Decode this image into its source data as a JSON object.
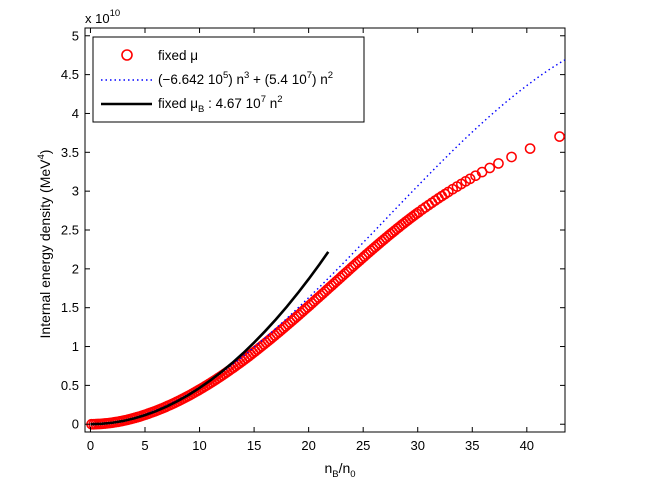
{
  "chart_data": {
    "type": "scatter",
    "xlabel": {
      "base": "n",
      "sub1": "B",
      "mid": "/n",
      "sub2": "0"
    },
    "ylabel": {
      "text": "Internal energy density (MeV",
      "sup": "4",
      "end": ")"
    },
    "y_multiplier": {
      "prefix": "x 10",
      "exponent": "10"
    },
    "x_ticks": [
      0,
      5,
      10,
      15,
      20,
      25,
      30,
      35,
      40
    ],
    "y_ticks": [
      0,
      0.5,
      1,
      1.5,
      2,
      2.5,
      3,
      3.5,
      4,
      4.5,
      5
    ],
    "y_tick_labels": [
      "0",
      "0.5",
      "1",
      "1.5",
      "2",
      "2.5",
      "3",
      "3.5",
      "4",
      "4.5",
      "5"
    ],
    "xlim": [
      -0.5,
      43.5
    ],
    "ylim": [
      -0.1,
      5.1
    ],
    "y_scale_note": "y values in units of 10^10 MeV^4",
    "grid": false,
    "legend_position": "top-left",
    "legend": [
      {
        "id": "fixed_mu",
        "text": "fixed μ",
        "style": "red-circle"
      },
      {
        "id": "fit",
        "p1": "(−6.642 10",
        "s1": "5",
        "p2": ") n",
        "s2": "3",
        "p3": " + (5.4 10",
        "s3": "7",
        "p4": ") n",
        "s4": "2",
        "style": "blue-dotted"
      },
      {
        "id": "fixed_muB",
        "p1": "fixed μ",
        "sub": "B",
        "p2": " : 4.67 10",
        "s1": "7",
        "p3": " n",
        "s2": "2",
        "style": "black-solid"
      }
    ],
    "series": [
      {
        "name": "fixed μ",
        "marker": "circle",
        "color": "#ff0000",
        "x": [
          0.1,
          0.3,
          0.5,
          0.7,
          0.9,
          1.1,
          1.3,
          1.5,
          1.7,
          1.9,
          2.1,
          2.3,
          2.5,
          2.7,
          2.9,
          3.1,
          3.3,
          3.5,
          3.7,
          3.9,
          4.1,
          4.3,
          4.5,
          4.7,
          4.9,
          5.1,
          5.3,
          5.5,
          5.7,
          5.9,
          6.1,
          6.3,
          6.5,
          6.7,
          6.9,
          7.1,
          7.3,
          7.5,
          7.7,
          7.9,
          8.1,
          8.3,
          8.5,
          8.7,
          8.9,
          9.1,
          9.3,
          9.5,
          9.7,
          9.9,
          10.1,
          10.3,
          10.5,
          10.7,
          10.9,
          11.1,
          11.3,
          11.5,
          11.7,
          11.9,
          12.1,
          12.3,
          12.5,
          12.7,
          12.9,
          13.1,
          13.3,
          13.5,
          13.7,
          13.9,
          14.1,
          14.3,
          14.5,
          14.7,
          14.9,
          15.1,
          15.3,
          15.5,
          15.7,
          15.9,
          16.1,
          16.3,
          16.5,
          16.7,
          16.9,
          17.1,
          17.3,
          17.5,
          17.7,
          17.9,
          18.1,
          18.3,
          18.5,
          18.7,
          18.9,
          19.1,
          19.3,
          19.5,
          19.7,
          19.9,
          20.1,
          20.3,
          20.5,
          20.7,
          20.9,
          21.1,
          21.3,
          21.5,
          21.7,
          21.9,
          22.1,
          22.3,
          22.5,
          22.7,
          22.9,
          23.1,
          23.3,
          23.5,
          23.7,
          23.9,
          24.1,
          24.3,
          24.5,
          24.7,
          24.9,
          25.1,
          25.3,
          25.5,
          25.7,
          25.9,
          26.1,
          26.3,
          26.5,
          26.7,
          26.9,
          27.1,
          27.3,
          27.5,
          27.7,
          27.9,
          28.1,
          28.3,
          28.5,
          28.7,
          28.9,
          29.1,
          29.3,
          29.5,
          29.7,
          29.9,
          30.1,
          30.4,
          30.7,
          31.0,
          31.3,
          31.6,
          31.9,
          32.2,
          32.5,
          32.8,
          33.2,
          33.6,
          34.0,
          34.4,
          34.8,
          35.3,
          35.9,
          36.6,
          37.4,
          38.6,
          40.3,
          43.0
        ],
        "y": [
          0.0,
          0.0,
          0.001,
          0.003,
          0.004,
          0.006,
          0.009,
          0.012,
          0.015,
          0.018,
          0.022,
          0.027,
          0.031,
          0.037,
          0.042,
          0.048,
          0.054,
          0.061,
          0.068,
          0.075,
          0.083,
          0.091,
          0.099,
          0.108,
          0.117,
          0.126,
          0.136,
          0.146,
          0.156,
          0.166,
          0.177,
          0.188,
          0.2,
          0.211,
          0.223,
          0.236,
          0.248,
          0.261,
          0.274,
          0.288,
          0.301,
          0.315,
          0.33,
          0.344,
          0.359,
          0.374,
          0.389,
          0.405,
          0.421,
          0.437,
          0.454,
          0.47,
          0.487,
          0.504,
          0.522,
          0.539,
          0.557,
          0.575,
          0.594,
          0.612,
          0.631,
          0.65,
          0.669,
          0.689,
          0.709,
          0.728,
          0.749,
          0.769,
          0.789,
          0.81,
          0.831,
          0.852,
          0.873,
          0.895,
          0.917,
          0.939,
          0.961,
          0.983,
          1.005,
          1.028,
          1.05,
          1.073,
          1.096,
          1.12,
          1.143,
          1.166,
          1.19,
          1.214,
          1.237,
          1.261,
          1.285,
          1.31,
          1.334,
          1.358,
          1.383,
          1.407,
          1.432,
          1.457,
          1.482,
          1.506,
          1.531,
          1.556,
          1.581,
          1.607,
          1.632,
          1.657,
          1.682,
          1.707,
          1.733,
          1.758,
          1.783,
          1.809,
          1.834,
          1.859,
          1.884,
          1.91,
          1.935,
          1.96,
          1.985,
          2.011,
          2.036,
          2.061,
          2.086,
          2.11,
          2.135,
          2.16,
          2.185,
          2.209,
          2.234,
          2.258,
          2.282,
          2.306,
          2.33,
          2.354,
          2.377,
          2.401,
          2.424,
          2.448,
          2.47,
          2.493,
          2.516,
          2.538,
          2.561,
          2.583,
          2.605,
          2.626,
          2.648,
          2.669,
          2.69,
          2.711,
          2.731,
          2.762,
          2.791,
          2.821,
          2.85,
          2.879,
          2.907,
          2.935,
          2.962,
          2.989,
          3.025,
          3.059,
          3.093,
          3.127,
          3.159,
          3.199,
          3.246,
          3.299,
          3.357,
          3.44,
          3.548,
          3.703
        ]
      },
      {
        "name": "(−6.642 10^5) n^3 + (5.4 10^7) n^2",
        "style": "dotted",
        "color": "#0000ff",
        "x": [
          0,
          1,
          2,
          3,
          4,
          5,
          6,
          7,
          8,
          9,
          10,
          11,
          12,
          13,
          14,
          15,
          16,
          17,
          18,
          19,
          20,
          21,
          22,
          23,
          24,
          25,
          26,
          27,
          28,
          29,
          30,
          31,
          32,
          33,
          34,
          35,
          36,
          37,
          38,
          39,
          40,
          41,
          42,
          43,
          43.5
        ],
        "y": [
          0.0,
          0.005,
          0.021,
          0.047,
          0.082,
          0.127,
          0.18,
          0.242,
          0.312,
          0.389,
          0.474,
          0.565,
          0.663,
          0.767,
          0.876,
          0.991,
          1.11,
          1.234,
          1.362,
          1.494,
          1.629,
          1.766,
          1.906,
          2.048,
          2.192,
          2.338,
          2.483,
          2.63,
          2.777,
          2.923,
          3.067,
          3.211,
          3.353,
          3.492,
          3.629,
          3.762,
          3.89,
          4.015,
          4.136,
          4.25,
          4.359,
          4.463,
          4.56,
          4.649,
          4.69
        ]
      },
      {
        "name": "fixed μB : 4.67 10^7 n^2",
        "style": "solid",
        "color": "#000000",
        "x": [
          0,
          1,
          2,
          3,
          4,
          5,
          6,
          7,
          8,
          9,
          10,
          11,
          12,
          13,
          14,
          15,
          16,
          17,
          18,
          19,
          20,
          21,
          21.8
        ],
        "y": [
          0.0,
          0.005,
          0.019,
          0.042,
          0.075,
          0.117,
          0.168,
          0.229,
          0.299,
          0.378,
          0.467,
          0.565,
          0.672,
          0.789,
          0.915,
          1.051,
          1.196,
          1.35,
          1.513,
          1.686,
          1.868,
          2.059,
          2.219
        ]
      }
    ]
  }
}
